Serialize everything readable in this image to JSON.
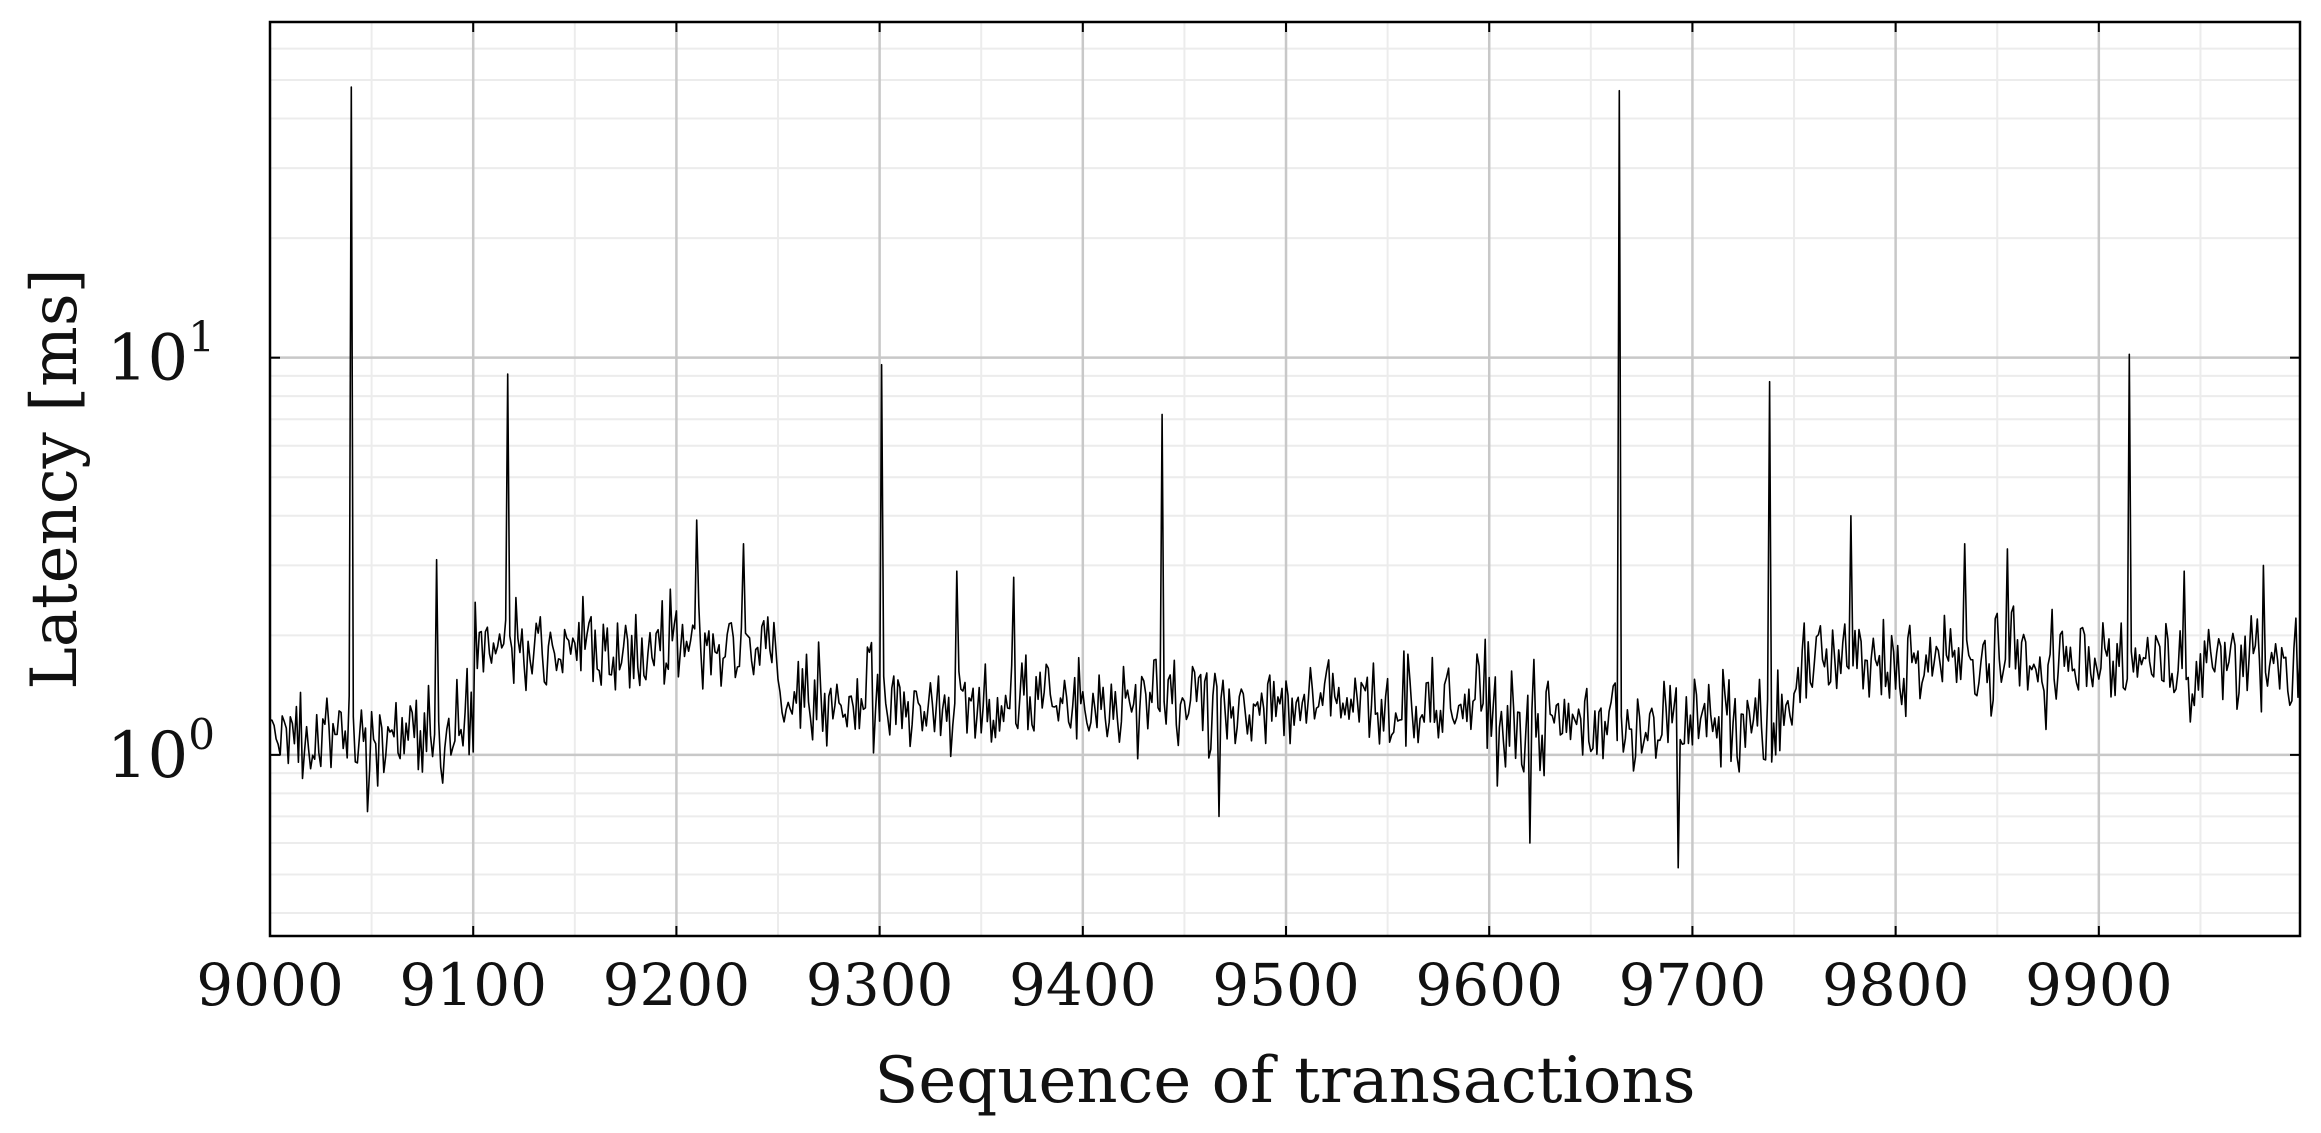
{
  "chart_data": {
    "type": "line",
    "xlabel": "Sequence of transactions",
    "ylabel": "Latency [ms]",
    "xlim": [
      9000,
      9999
    ],
    "ylim": [
      0.35,
      70
    ],
    "y_scale": "log",
    "grid": true,
    "legend": "none",
    "x_ticks": [
      9000,
      9100,
      9200,
      9300,
      9400,
      9500,
      9600,
      9700,
      9800,
      9900
    ],
    "x_tick_labels": [
      "9000",
      "9100",
      "9200",
      "9300",
      "9400",
      "9500",
      "9600",
      "9700",
      "9800",
      "9900"
    ],
    "y_ticks": [
      {
        "value": 1,
        "base": "10",
        "exp": "0"
      },
      {
        "value": 10,
        "base": "10",
        "exp": "1"
      }
    ],
    "line_color": "#000000",
    "series": [
      {
        "x_start": 9000,
        "x_step": 1,
        "baseline_segments": [
          {
            "from": 9000,
            "to": 9100,
            "median": 1.15
          },
          {
            "from": 9100,
            "to": 9250,
            "median": 1.9
          },
          {
            "from": 9250,
            "to": 9600,
            "median": 1.35
          },
          {
            "from": 9600,
            "to": 9750,
            "median": 1.2
          },
          {
            "from": 9750,
            "to": 9999,
            "median": 1.7
          }
        ],
        "spikes": [
          {
            "x": 9040,
            "y": 48
          },
          {
            "x": 9117,
            "y": 9.1
          },
          {
            "x": 9301,
            "y": 9.6
          },
          {
            "x": 9439,
            "y": 7.2
          },
          {
            "x": 9664,
            "y": 47
          },
          {
            "x": 9738,
            "y": 8.7
          },
          {
            "x": 9915,
            "y": 10.2
          },
          {
            "x": 9082,
            "y": 3.1
          },
          {
            "x": 9210,
            "y": 3.9
          },
          {
            "x": 9233,
            "y": 3.4
          },
          {
            "x": 9338,
            "y": 2.9
          },
          {
            "x": 9366,
            "y": 2.8
          },
          {
            "x": 9693,
            "y": 0.52
          },
          {
            "x": 9620,
            "y": 0.6
          },
          {
            "x": 9778,
            "y": 4.0
          },
          {
            "x": 9834,
            "y": 3.4
          },
          {
            "x": 9855,
            "y": 3.3
          },
          {
            "x": 9942,
            "y": 2.9
          },
          {
            "x": 9981,
            "y": 3.0
          },
          {
            "x": 9048,
            "y": 0.72
          },
          {
            "x": 9467,
            "y": 0.7
          }
        ]
      }
    ]
  }
}
